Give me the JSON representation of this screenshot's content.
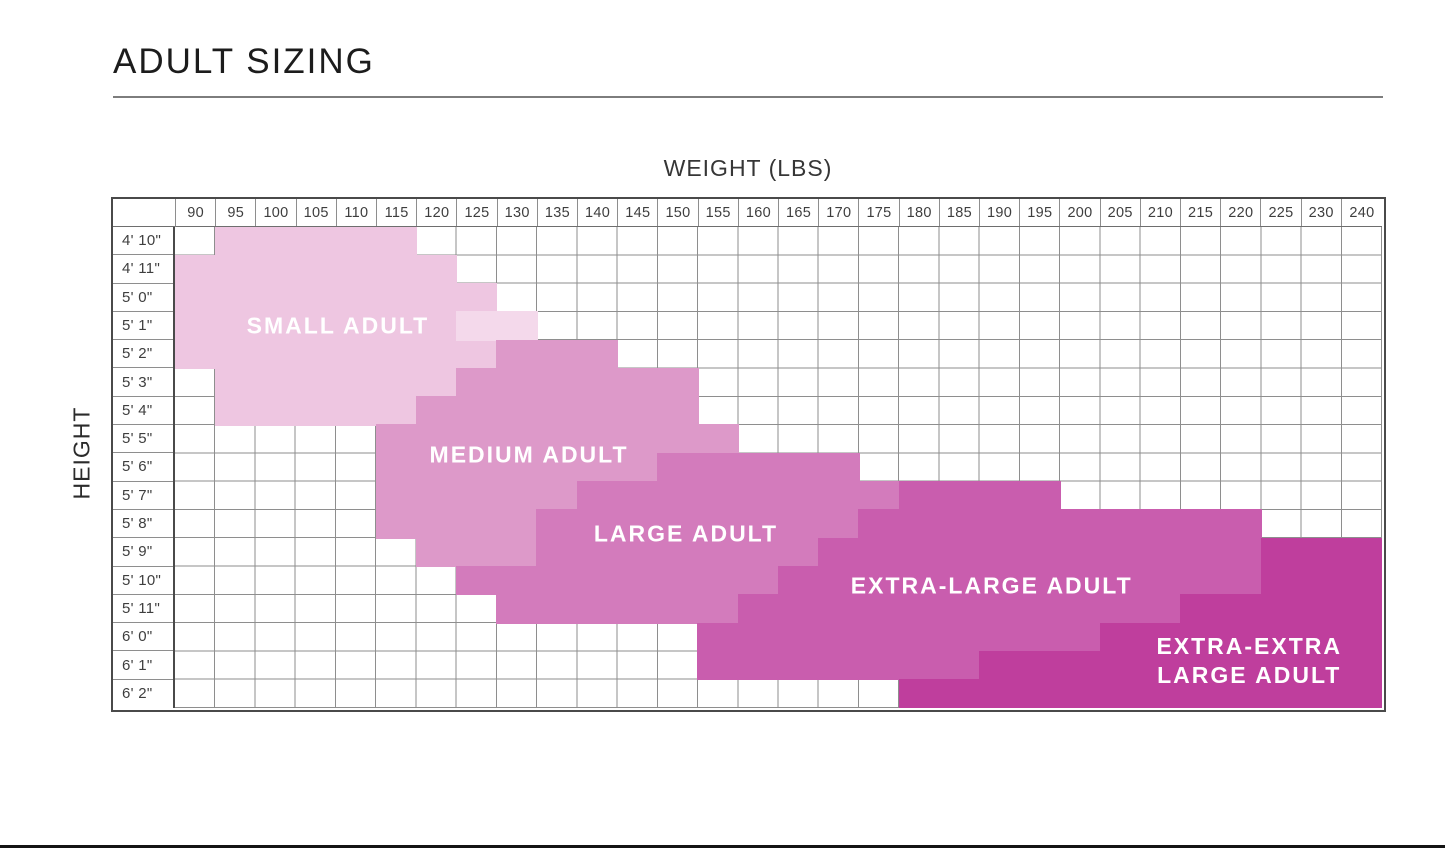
{
  "chart_data": {
    "type": "heatmap",
    "title": "ADULT SIZING",
    "xlabel": "WEIGHT (LBS)",
    "ylabel": "HEIGHT",
    "grid": true,
    "legend_position": "none",
    "x_categories": [
      "90",
      "95",
      "100",
      "105",
      "110",
      "115",
      "120",
      "125",
      "130",
      "135",
      "140",
      "145",
      "150",
      "155",
      "160",
      "165",
      "170",
      "175",
      "180",
      "185",
      "190",
      "195",
      "200",
      "205",
      "210",
      "215",
      "220",
      "225",
      "230",
      "240"
    ],
    "y_categories": [
      "4' 10\"",
      "4' 11\"",
      "5' 0\"",
      "5' 1\"",
      "5' 2\"",
      "5' 3\"",
      "5' 4\"",
      "5' 5\"",
      "5' 6\"",
      "5' 7\"",
      "5' 8\"",
      "5' 9\"",
      "5' 10\"",
      "5' 11\"",
      "6' 0\"",
      "6' 1\"",
      "6' 2\""
    ],
    "regions": [
      {
        "id": "small-adult",
        "label_lines": [
          "SMALL ADULT"
        ],
        "color": "#eec6e1",
        "label_center": [
          4.05,
          3.5
        ],
        "rows": [
          {
            "height": "4' 10\"",
            "weights": [
              "95",
              "115"
            ]
          },
          {
            "height": "4' 11\"",
            "weights": [
              "90",
              "120"
            ]
          },
          {
            "height": "5' 0\"",
            "weights": [
              "90",
              "125"
            ]
          },
          {
            "height": "5' 1\"",
            "weights": [
              "90",
              "130"
            ]
          },
          {
            "height": "5' 2\"",
            "weights": [
              "90",
              "125"
            ]
          },
          {
            "height": "5' 3\"",
            "weights": [
              "95",
              "120"
            ]
          },
          {
            "height": "5' 4\"",
            "weights": [
              "95",
              "115"
            ]
          }
        ]
      },
      {
        "id": "small-adult-light-patch",
        "label_lines": [],
        "color": "#f4d9eb",
        "label_center": null,
        "rows": [
          {
            "height": "5' 1\"",
            "weights": [
              "125",
              "130"
            ]
          }
        ]
      },
      {
        "id": "medium-adult",
        "label_lines": [
          "MEDIUM ADULT"
        ],
        "color": "#dd99c9",
        "label_center": [
          8.8,
          8.05
        ],
        "rows": [
          {
            "height": "5' 2\"",
            "weights": [
              "130",
              "140"
            ]
          },
          {
            "height": "5' 3\"",
            "weights": [
              "125",
              "150"
            ]
          },
          {
            "height": "5' 4\"",
            "weights": [
              "120",
              "150"
            ]
          },
          {
            "height": "5' 5\"",
            "weights": [
              "115",
              "155"
            ]
          },
          {
            "height": "5' 6\"",
            "weights": [
              "115",
              "145"
            ]
          },
          {
            "height": "5' 7\"",
            "weights": [
              "115",
              "135"
            ]
          },
          {
            "height": "5' 8\"",
            "weights": [
              "115",
              "130"
            ]
          },
          {
            "height": "5' 9\"",
            "weights": [
              "120",
              "130"
            ]
          }
        ]
      },
      {
        "id": "large-adult",
        "label_lines": [
          "LARGE ADULT"
        ],
        "color": "#d37bbc",
        "label_center": [
          12.7,
          10.85
        ],
        "rows": [
          {
            "height": "5' 6\"",
            "weights": [
              "150",
              "170"
            ]
          },
          {
            "height": "5' 7\"",
            "weights": [
              "140",
              "175"
            ]
          },
          {
            "height": "5' 8\"",
            "weights": [
              "135",
              "170"
            ]
          },
          {
            "height": "5' 9\"",
            "weights": [
              "135",
              "165"
            ]
          },
          {
            "height": "5' 10\"",
            "weights": [
              "125",
              "160"
            ]
          },
          {
            "height": "5' 11\"",
            "weights": [
              "130",
              "155"
            ]
          }
        ]
      },
      {
        "id": "extra-large-adult",
        "label_lines": [
          "EXTRA-LARGE ADULT"
        ],
        "color": "#c95dae",
        "label_center": [
          20.3,
          12.7
        ],
        "rows": [
          {
            "height": "5' 7\"",
            "weights": [
              "180",
              "195"
            ]
          },
          {
            "height": "5' 8\"",
            "weights": [
              "175",
              "220"
            ]
          },
          {
            "height": "5' 9\"",
            "weights": [
              "170",
              "220"
            ]
          },
          {
            "height": "5' 10\"",
            "weights": [
              "165",
              "220"
            ]
          },
          {
            "height": "5' 11\"",
            "weights": [
              "160",
              "210"
            ]
          },
          {
            "height": "6' 0\"",
            "weights": [
              "155",
              "200"
            ]
          },
          {
            "height": "6' 1\"",
            "weights": [
              "155",
              "185"
            ]
          }
        ]
      },
      {
        "id": "extra-extra-large-adult",
        "label_lines": [
          "EXTRA-EXTRA",
          "LARGE ADULT"
        ],
        "color": "#bf3e9d",
        "label_center": [
          26.7,
          15.35
        ],
        "rows": [
          {
            "height": "5' 9\"",
            "weights": [
              "225",
              "240"
            ]
          },
          {
            "height": "5' 10\"",
            "weights": [
              "225",
              "240"
            ]
          },
          {
            "height": "5' 11\"",
            "weights": [
              "215",
              "240"
            ]
          },
          {
            "height": "6' 0\"",
            "weights": [
              "205",
              "240"
            ]
          },
          {
            "height": "6' 1\"",
            "weights": [
              "190",
              "240"
            ]
          },
          {
            "height": "6' 2\"",
            "weights": [
              "180",
              "240"
            ]
          }
        ]
      }
    ]
  }
}
